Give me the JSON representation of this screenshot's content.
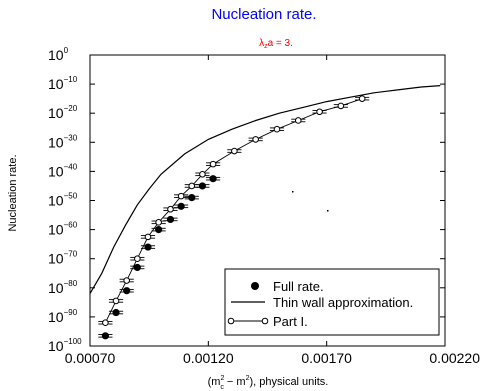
{
  "chart_data": {
    "type": "scatter",
    "title": "Nucleation rate.",
    "subtitle": {
      "main": "λ",
      "sub": "z",
      "rest": "a = 3."
    },
    "ylabel": "Nucleation rate.",
    "xlabel": {
      "p1": "(m",
      "s1": "2",
      "b1": "c",
      "p2": " − m",
      "s2": "2",
      "p3": "), physical units."
    },
    "colors": {
      "title": "#0000ff",
      "subtitle": "#ff0000",
      "axes": "#000000"
    },
    "y_scale": "log",
    "xlim": [
      0.0007,
      0.0022
    ],
    "ylim_exponent": [
      -100,
      0
    ],
    "x_ticks": [
      "0.00070",
      "0.00120",
      "0.00170",
      "0.00220"
    ],
    "x_tick_values": [
      0.0007,
      0.0012,
      0.0017,
      0.0022
    ],
    "y_tick_exponents": [
      0,
      -10,
      -20,
      -30,
      -40,
      -50,
      -60,
      -70,
      -80,
      -90,
      -100
    ],
    "y_tick_base": "10",
    "legend_position": "bottom-right",
    "series": [
      {
        "name": "Full rate.",
        "marker": "filled-circle",
        "error_bars": "horizontal",
        "points": [
          {
            "x": 0.000765,
            "y_exp": -96.5,
            "xerr": 3e-05
          },
          {
            "x": 0.00081,
            "y_exp": -88.5,
            "xerr": 3e-05
          },
          {
            "x": 0.000855,
            "y_exp": -81.0,
            "xerr": 3e-05
          },
          {
            "x": 0.0009,
            "y_exp": -73.0,
            "xerr": 3e-05
          },
          {
            "x": 0.000945,
            "y_exp": -66.0,
            "xerr": 3e-05
          },
          {
            "x": 0.00099,
            "y_exp": -60.0,
            "xerr": 3e-05
          },
          {
            "x": 0.00104,
            "y_exp": -56.5,
            "xerr": 3e-05
          },
          {
            "x": 0.001085,
            "y_exp": -52.0,
            "xerr": 3e-05
          },
          {
            "x": 0.00113,
            "y_exp": -49.0,
            "xerr": 3e-05
          },
          {
            "x": 0.001175,
            "y_exp": -45.0,
            "xerr": 3e-05
          },
          {
            "x": 0.00122,
            "y_exp": -42.5,
            "xerr": 3e-05
          }
        ]
      },
      {
        "name": "Thin wall approximation.",
        "style": "line",
        "points": [
          {
            "x": 0.0007,
            "y_exp": -82
          },
          {
            "x": 0.00075,
            "y_exp": -75
          },
          {
            "x": 0.0008,
            "y_exp": -66
          },
          {
            "x": 0.00085,
            "y_exp": -58.5
          },
          {
            "x": 0.0009,
            "y_exp": -51.5
          },
          {
            "x": 0.00095,
            "y_exp": -46
          },
          {
            "x": 0.001,
            "y_exp": -41
          },
          {
            "x": 0.0011,
            "y_exp": -34
          },
          {
            "x": 0.0012,
            "y_exp": -29
          },
          {
            "x": 0.0013,
            "y_exp": -25.5
          },
          {
            "x": 0.0014,
            "y_exp": -22.5
          },
          {
            "x": 0.0015,
            "y_exp": -20
          },
          {
            "x": 0.0016,
            "y_exp": -18
          },
          {
            "x": 0.0017,
            "y_exp": -16
          },
          {
            "x": 0.0018,
            "y_exp": -14.5
          },
          {
            "x": 0.0019,
            "y_exp": -13
          },
          {
            "x": 0.002,
            "y_exp": -12
          },
          {
            "x": 0.0021,
            "y_exp": -11
          },
          {
            "x": 0.00218,
            "y_exp": -10.5
          }
        ]
      },
      {
        "name": "Part I.",
        "marker": "open-circle",
        "style": "line",
        "error_bars": "horizontal",
        "points": [
          {
            "x": 0.000765,
            "y_exp": -92.0,
            "xerr": 3e-05
          },
          {
            "x": 0.00081,
            "y_exp": -84.5,
            "xerr": 3e-05
          },
          {
            "x": 0.000855,
            "y_exp": -77.5,
            "xerr": 3e-05
          },
          {
            "x": 0.0009,
            "y_exp": -70.0,
            "xerr": 3e-05
          },
          {
            "x": 0.000945,
            "y_exp": -62.5,
            "xerr": 3e-05
          },
          {
            "x": 0.00099,
            "y_exp": -57.5,
            "xerr": 3e-05
          },
          {
            "x": 0.00104,
            "y_exp": -53.0,
            "xerr": 3e-05
          },
          {
            "x": 0.001085,
            "y_exp": -48.5,
            "xerr": 3e-05
          },
          {
            "x": 0.00113,
            "y_exp": -45.0,
            "xerr": 3e-05
          },
          {
            "x": 0.001175,
            "y_exp": -41.0,
            "xerr": 3e-05
          },
          {
            "x": 0.00122,
            "y_exp": -37.5,
            "xerr": 3e-05
          },
          {
            "x": 0.00131,
            "y_exp": -33.0,
            "xerr": 3e-05
          },
          {
            "x": 0.0014,
            "y_exp": -29.0,
            "xerr": 3e-05
          },
          {
            "x": 0.00149,
            "y_exp": -25.5,
            "xerr": 3e-05
          },
          {
            "x": 0.00158,
            "y_exp": -22.5,
            "xerr": 3e-05
          },
          {
            "x": 0.00167,
            "y_exp": -19.5,
            "xerr": 3e-05
          },
          {
            "x": 0.00176,
            "y_exp": -17.5,
            "xerr": 3e-05
          },
          {
            "x": 0.00185,
            "y_exp": -15.0,
            "xerr": 3e-05
          }
        ]
      }
    ]
  }
}
